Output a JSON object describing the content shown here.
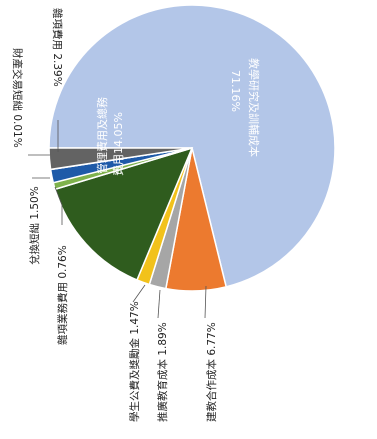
{
  "chart_data": {
    "type": "pie",
    "slices": [
      {
        "label": "教學研究及訓輔成本",
        "value": 71.16,
        "value_label": "71.16%",
        "color": "#b3c6e8"
      },
      {
        "label": "建教合作成本",
        "value": 6.77,
        "value_label": "6.77%",
        "color": "#ec7a2f"
      },
      {
        "label": "推廣教育成本",
        "value": 1.89,
        "value_label": "1.89%",
        "color": "#a6a6a6"
      },
      {
        "label": "學生公費及獎勵金",
        "value": 1.47,
        "value_label": "1.47%",
        "color": "#f2c21b"
      },
      {
        "label": "管理費用及總務費用",
        "value": 14.05,
        "value_label": "14.05%",
        "color": "#2f5c1e"
      },
      {
        "label": "雜項業務費用",
        "value": 0.76,
        "value_label": "0.76%",
        "color": "#7fb24c"
      },
      {
        "label": "兌換短絀",
        "value": 1.5,
        "value_label": "1.50%",
        "color": "#1e5aa8"
      },
      {
        "label": "財產交易短絀",
        "value": 0.01,
        "value_label": "0.01%",
        "color": "#4a4a4a"
      },
      {
        "label": "雜項費用",
        "value": 2.39,
        "value_label": "2.39%",
        "color": "#636363"
      }
    ],
    "labels": {
      "teaching_line1": "教學研究及訓輔成本",
      "teaching_line2": "71.16%",
      "mgmt_line1": "管理費用及總務",
      "mgmt_line2": "費用14.05%",
      "coop": "建教合作成本 6.77%",
      "extension": "推廣教育成本 1.89%",
      "scholarship": "學生公費及獎勵金 1.47%",
      "misc_business": "雜項業務費用 0.76%",
      "fx": "兌換短絀 1.50%",
      "asset": "財產交易短絀 0.01%",
      "misc": "雜項費用 2.39%"
    }
  }
}
